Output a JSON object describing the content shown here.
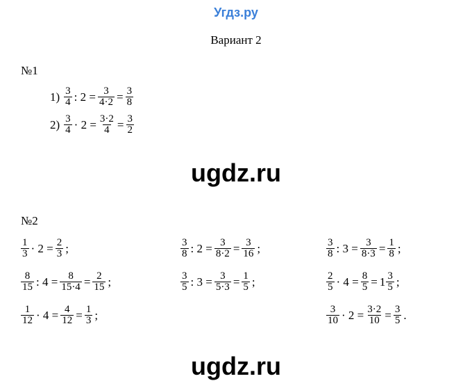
{
  "brand": "Угдз.ру",
  "variant_title": "Вариант 2",
  "watermark": "ugdz.ru",
  "colors": {
    "brand": "#3a7fd9",
    "text": "#000000",
    "background": "#ffffff"
  },
  "typography": {
    "body_font": "Times New Roman",
    "brand_font": "Arial",
    "body_size_pt": 13,
    "brand_size_pt": 14,
    "watermark_size_pt": 27,
    "watermark_weight": 900
  },
  "problem1": {
    "label": "№1",
    "items": [
      {
        "num": "1)",
        "parts": [
          {
            "t": "frac",
            "n": "3",
            "d": "4"
          },
          {
            "t": "op",
            "v": ": 2 ="
          },
          {
            "t": "frac",
            "n": "3",
            "d": "4·2"
          },
          {
            "t": "op",
            "v": "="
          },
          {
            "t": "frac",
            "n": "3",
            "d": "8"
          }
        ]
      },
      {
        "num": "2)",
        "parts": [
          {
            "t": "frac",
            "n": "3",
            "d": "4"
          },
          {
            "t": "op",
            "v": "· 2 ="
          },
          {
            "t": "frac",
            "n": "3·2",
            "d": "4"
          },
          {
            "t": "op",
            "v": "="
          },
          {
            "t": "frac",
            "n": "3",
            "d": "2"
          }
        ]
      }
    ]
  },
  "problem2": {
    "label": "№2",
    "grid": [
      [
        {
          "parts": [
            {
              "t": "frac",
              "n": "1",
              "d": "3"
            },
            {
              "t": "op",
              "v": "· 2 ="
            },
            {
              "t": "frac",
              "n": "2",
              "d": "3"
            },
            {
              "t": "op",
              "v": ";"
            }
          ]
        },
        {
          "parts": [
            {
              "t": "frac",
              "n": "3",
              "d": "8"
            },
            {
              "t": "op",
              "v": ": 2 ="
            },
            {
              "t": "frac",
              "n": "3",
              "d": "8·2"
            },
            {
              "t": "op",
              "v": "="
            },
            {
              "t": "frac",
              "n": "3",
              "d": "16"
            },
            {
              "t": "op",
              "v": ";"
            }
          ]
        },
        {
          "parts": [
            {
              "t": "frac",
              "n": "3",
              "d": "8"
            },
            {
              "t": "op",
              "v": ": 3 ="
            },
            {
              "t": "frac",
              "n": "3",
              "d": "8·3"
            },
            {
              "t": "op",
              "v": "="
            },
            {
              "t": "frac",
              "n": "1",
              "d": "8"
            },
            {
              "t": "op",
              "v": ";"
            }
          ]
        }
      ],
      [
        {
          "parts": [
            {
              "t": "frac",
              "n": "8",
              "d": "15"
            },
            {
              "t": "op",
              "v": ": 4 ="
            },
            {
              "t": "frac",
              "n": "8",
              "d": "15·4"
            },
            {
              "t": "op",
              "v": "="
            },
            {
              "t": "frac",
              "n": "2",
              "d": "15"
            },
            {
              "t": "op",
              "v": ";"
            }
          ]
        },
        {
          "parts": [
            {
              "t": "frac",
              "n": "3",
              "d": "5"
            },
            {
              "t": "op",
              "v": ": 3 ="
            },
            {
              "t": "frac",
              "n": "3",
              "d": "5·3"
            },
            {
              "t": "op",
              "v": "="
            },
            {
              "t": "frac",
              "n": "1",
              "d": "5"
            },
            {
              "t": "op",
              "v": ";"
            }
          ]
        },
        {
          "parts": [
            {
              "t": "frac",
              "n": "2",
              "d": "5"
            },
            {
              "t": "op",
              "v": "· 4 ="
            },
            {
              "t": "frac",
              "n": "8",
              "d": "5"
            },
            {
              "t": "op",
              "v": "="
            },
            {
              "t": "mixed",
              "w": "1",
              "n": "3",
              "d": "5"
            },
            {
              "t": "op",
              "v": ";"
            }
          ]
        }
      ],
      [
        {
          "parts": [
            {
              "t": "frac",
              "n": "1",
              "d": "12"
            },
            {
              "t": "op",
              "v": "· 4 ="
            },
            {
              "t": "frac",
              "n": "4",
              "d": "12"
            },
            {
              "t": "op",
              "v": "="
            },
            {
              "t": "frac",
              "n": "1",
              "d": "3"
            },
            {
              "t": "op",
              "v": ";"
            }
          ]
        },
        null,
        {
          "parts": [
            {
              "t": "frac",
              "n": "3",
              "d": "10"
            },
            {
              "t": "op",
              "v": "· 2 ="
            },
            {
              "t": "frac",
              "n": "3·2",
              "d": "10"
            },
            {
              "t": "op",
              "v": "="
            },
            {
              "t": "frac",
              "n": "3",
              "d": "5"
            },
            {
              "t": "op",
              "v": "."
            }
          ]
        }
      ]
    ]
  }
}
